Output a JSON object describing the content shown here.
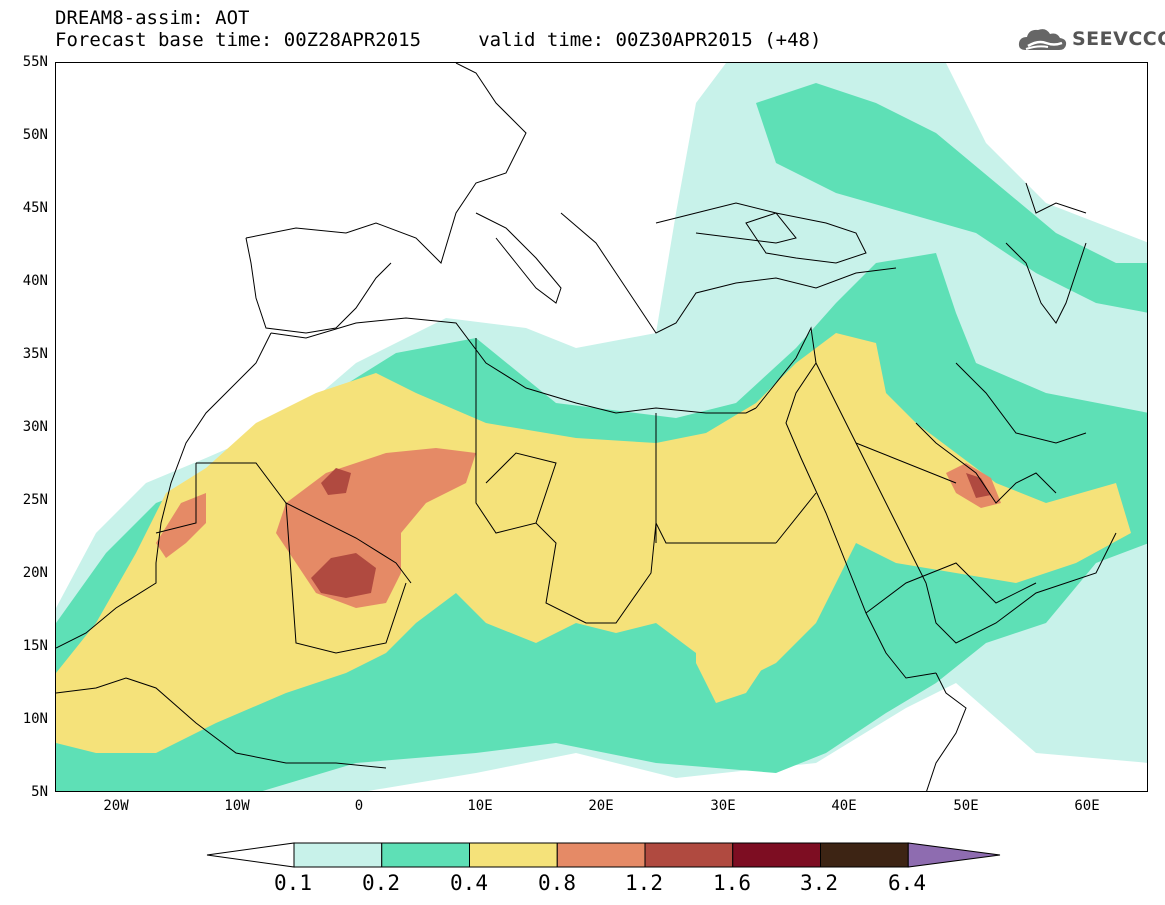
{
  "header": {
    "line1": "DREAM8-assim: AOT",
    "line2": "Forecast base time: 00Z28APR2015     valid time: 00Z30APR2015 (+48)"
  },
  "logo": {
    "icon": "cloud-icon",
    "text": "SEEVCCC"
  },
  "map": {
    "lon_range": [
      -25,
      65
    ],
    "lat_range": [
      5,
      55
    ],
    "lat_ticks": [
      "55N",
      "50N",
      "45N",
      "40N",
      "35N",
      "30N",
      "25N",
      "20N",
      "15N",
      "10N",
      "5N"
    ],
    "lon_ticks": [
      "20W",
      "10W",
      "0",
      "10E",
      "20E",
      "30E",
      "40E",
      "50E",
      "60E"
    ]
  },
  "colorbar": {
    "labels": [
      "0.1",
      "0.2",
      "0.4",
      "0.8",
      "1.2",
      "1.6",
      "3.2",
      "6.4"
    ],
    "colors": [
      "#c8f2ea",
      "#5ee0b6",
      "#f5e27a",
      "#e58a66",
      "#b04a40",
      "#7d0d22",
      "#3d2414",
      "#8e6cb0"
    ],
    "low_color": "#ffffff"
  }
}
